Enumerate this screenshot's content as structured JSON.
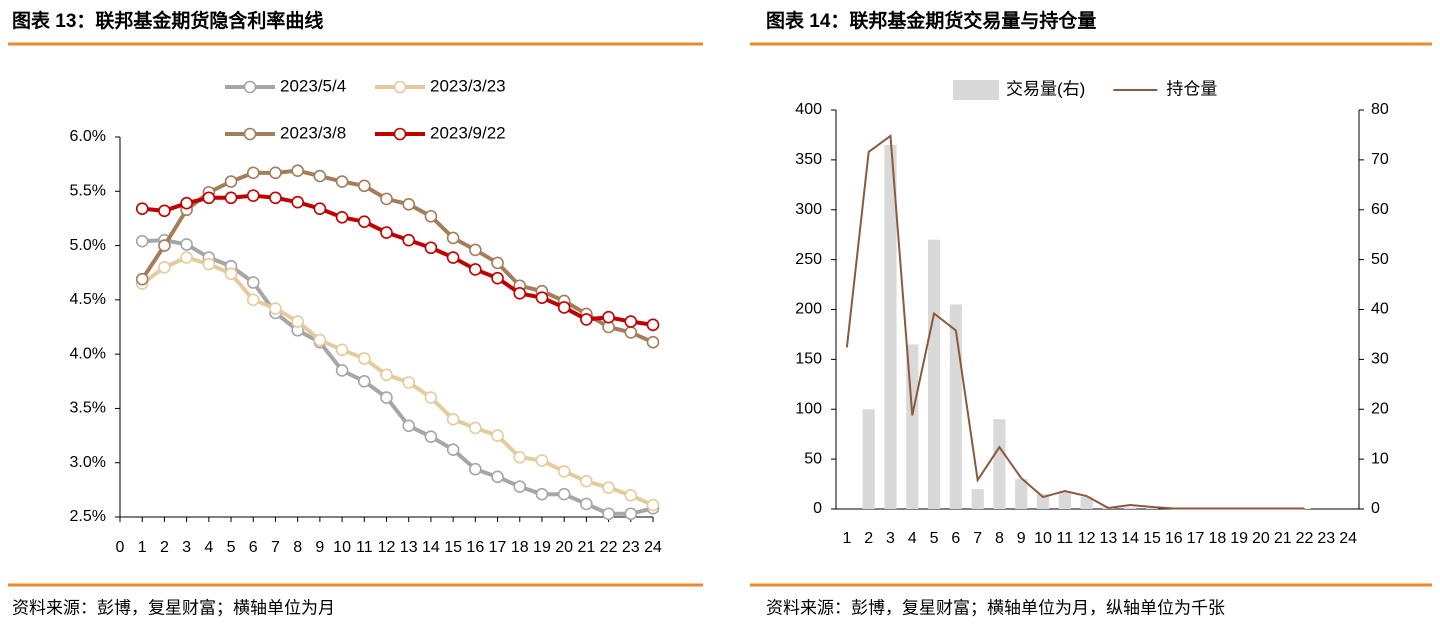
{
  "chart_data": [
    {
      "type": "line",
      "title": "图表 13：联邦基金期货隐含利率曲线",
      "source": "资料来源：彭博，复星财富；横轴单位为月",
      "x": [
        1,
        2,
        3,
        4,
        5,
        6,
        7,
        8,
        9,
        10,
        11,
        12,
        13,
        14,
        15,
        16,
        17,
        18,
        19,
        20,
        21,
        22,
        23,
        24
      ],
      "xlim": [
        0,
        24
      ],
      "xticks": [
        0,
        1,
        2,
        3,
        4,
        5,
        6,
        7,
        8,
        9,
        10,
        11,
        12,
        13,
        14,
        15,
        16,
        17,
        18,
        19,
        20,
        21,
        22,
        23,
        24
      ],
      "ylim": [
        2.5,
        6.0
      ],
      "yticks": [
        {
          "value": 2.5,
          "label": "2.5%"
        },
        {
          "value": 3.0,
          "label": "3.0%"
        },
        {
          "value": 3.5,
          "label": "3.5%"
        },
        {
          "value": 4.0,
          "label": "4.0%"
        },
        {
          "value": 4.5,
          "label": "4.5%"
        },
        {
          "value": 5.0,
          "label": "5.0%"
        },
        {
          "value": 5.5,
          "label": "5.5%"
        },
        {
          "value": 6.0,
          "label": "6.0%"
        }
      ],
      "grid": false,
      "series": [
        {
          "name": "2023/5/4",
          "color": "#a6a6a6",
          "values": [
            5.04,
            5.05,
            5.01,
            4.89,
            4.81,
            4.66,
            4.38,
            4.22,
            4.11,
            3.85,
            3.75,
            3.6,
            3.34,
            3.24,
            3.12,
            2.94,
            2.87,
            2.78,
            2.71,
            2.71,
            2.62,
            2.53,
            2.53,
            2.58
          ]
        },
        {
          "name": "2023/3/23",
          "color": "#e2cc9c",
          "values": [
            4.65,
            4.8,
            4.89,
            4.83,
            4.74,
            4.5,
            4.42,
            4.3,
            4.13,
            4.04,
            3.96,
            3.81,
            3.74,
            3.6,
            3.4,
            3.32,
            3.25,
            3.05,
            3.02,
            2.92,
            2.83,
            2.77,
            2.7,
            2.61
          ]
        },
        {
          "name": "2023/3/8",
          "color": "#a47d5a",
          "values": [
            4.69,
            5.0,
            5.33,
            5.49,
            5.59,
            5.67,
            5.67,
            5.69,
            5.64,
            5.59,
            5.55,
            5.43,
            5.38,
            5.27,
            5.07,
            4.96,
            4.84,
            4.63,
            4.58,
            4.49,
            4.37,
            4.25,
            4.2,
            4.11
          ]
        },
        {
          "name": "2023/9/22",
          "color": "#c00000",
          "values": [
            5.34,
            5.32,
            5.39,
            5.44,
            5.44,
            5.46,
            5.44,
            5.4,
            5.34,
            5.26,
            5.22,
            5.12,
            5.05,
            4.98,
            4.89,
            4.78,
            4.7,
            4.56,
            4.52,
            4.43,
            4.32,
            4.34,
            4.3,
            4.27
          ]
        }
      ]
    },
    {
      "type": "bar",
      "title": "图表 14：联邦基金期货交易量与持仓量",
      "source": "资料来源：彭博，复星财富；横轴单位为月，纵轴单位为千张",
      "categories": [
        "1",
        "2",
        "3",
        "4",
        "5",
        "6",
        "7",
        "8",
        "9",
        "10",
        "11",
        "12",
        "13",
        "14",
        "15",
        "16",
        "17",
        "18",
        "19",
        "20",
        "21",
        "22",
        "23",
        "24"
      ],
      "ylim": [
        0,
        400
      ],
      "yticks": [
        0,
        50,
        100,
        150,
        200,
        250,
        300,
        350,
        400
      ],
      "y2lim": [
        0,
        80
      ],
      "y2ticks": [
        0,
        10,
        20,
        30,
        40,
        50,
        60,
        70,
        80
      ],
      "series": [
        {
          "name": "交易量(右)",
          "type": "bar",
          "axis": "y2",
          "color": "#d9d9d9",
          "values": [
            0,
            20,
            73,
            33,
            54,
            41,
            4,
            18,
            6,
            3,
            3.5,
            2.5,
            0.4,
            0.3,
            0.2,
            0.1,
            0.1,
            0.1,
            0.1,
            0.1,
            0.1,
            0.1,
            0,
            0
          ]
        },
        {
          "name": "持仓量",
          "type": "line",
          "color": "#8b5a3c",
          "values": [
            162,
            358,
            374,
            94,
            196,
            179,
            29,
            62,
            31,
            12,
            18,
            13,
            1,
            4,
            2,
            0.5,
            0.5,
            0.5,
            0.5,
            0.5,
            0.5,
            0.5,
            null,
            null
          ]
        }
      ]
    }
  ]
}
